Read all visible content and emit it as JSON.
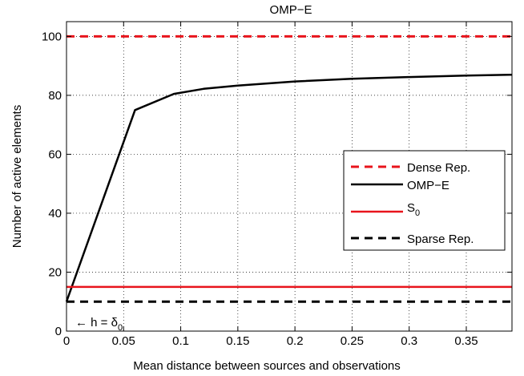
{
  "chart_data": {
    "type": "line",
    "title": "OMP−E",
    "xlabel": "Mean distance between sources and observations",
    "ylabel": "Number of active elements",
    "xlim": [
      0,
      0.39
    ],
    "ylim": [
      0,
      105
    ],
    "xticks": [
      0,
      0.05,
      0.1,
      0.15,
      0.2,
      0.25,
      0.3,
      0.35
    ],
    "xtick_labels": [
      "0",
      "0.05",
      "0.1",
      "0.15",
      "0.2",
      "0.25",
      "0.3",
      "0.35"
    ],
    "yticks": [
      0,
      20,
      40,
      60,
      80,
      100
    ],
    "ytick_labels": [
      "0",
      "20",
      "40",
      "60",
      "80",
      "100"
    ],
    "grid": true,
    "legend_position": "right",
    "series": [
      {
        "name": "Dense Rep.",
        "color": "#e8141c",
        "style": "dashed",
        "x": [
          0,
          0.39
        ],
        "y": [
          100,
          100
        ]
      },
      {
        "name": "OMP−E",
        "color": "#000000",
        "style": "solid",
        "x": [
          0,
          0.06,
          0.094,
          0.12,
          0.15,
          0.2,
          0.25,
          0.3,
          0.35,
          0.39
        ],
        "y": [
          10,
          75,
          80.5,
          82.2,
          83.3,
          84.7,
          85.6,
          86.2,
          86.7,
          87
        ]
      },
      {
        "name": "S",
        "name_subscript": "0",
        "color": "#e8141c",
        "style": "solid",
        "x": [
          0,
          0.39
        ],
        "y": [
          15,
          15
        ]
      },
      {
        "name": "Sparse Rep.",
        "color": "#000000",
        "style": "dashed",
        "x": [
          0,
          0.39
        ],
        "y": [
          10,
          10
        ]
      }
    ],
    "annotation": {
      "text_before": "← h = δ",
      "text_subscript": "0"
    }
  }
}
